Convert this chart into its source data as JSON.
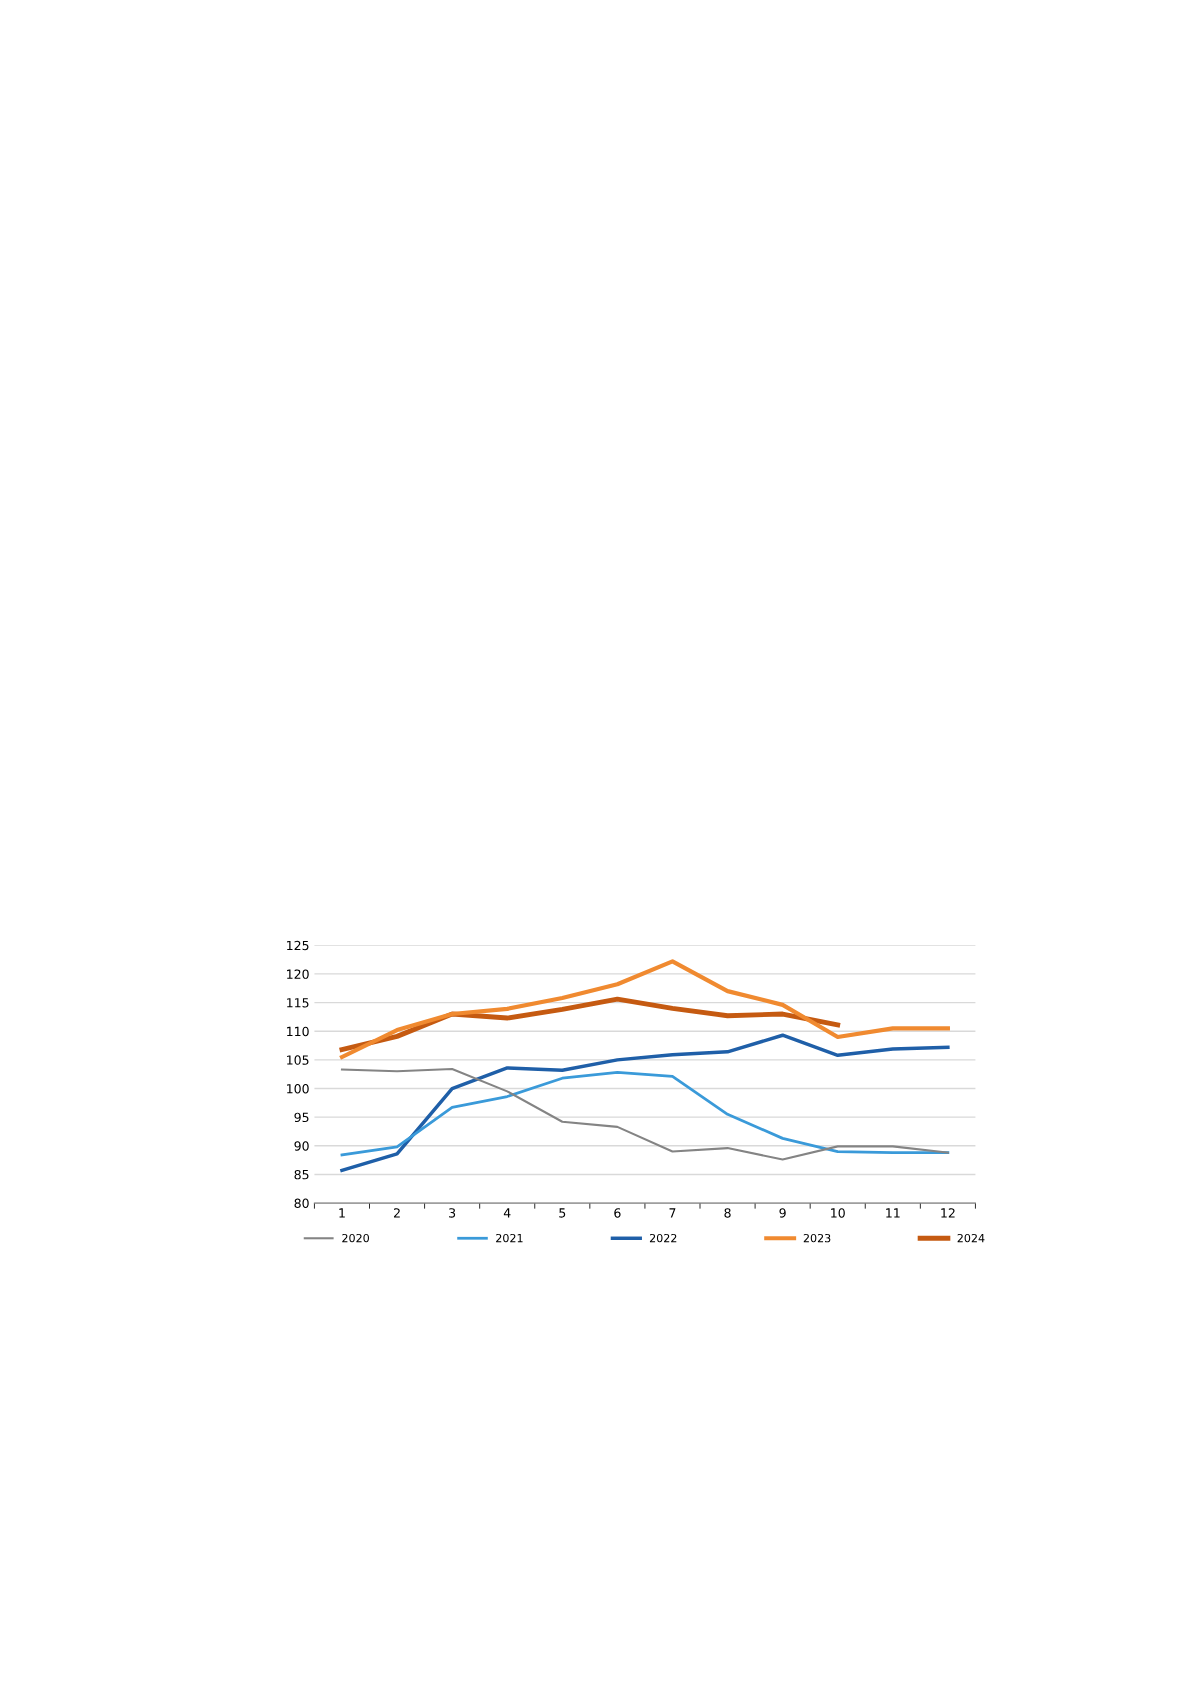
{
  "chart_data": {
    "type": "line",
    "categories": [
      "1",
      "2",
      "3",
      "4",
      "5",
      "6",
      "7",
      "8",
      "9",
      "10",
      "11",
      "12"
    ],
    "series": [
      {
        "name": "2020",
        "color": "#848484",
        "values": [
          103.3,
          103.0,
          103.4,
          99.5,
          94.2,
          93.3,
          89.0,
          89.6,
          87.6,
          89.9,
          89.9,
          88.8
        ]
      },
      {
        "name": "2021",
        "color": "#3a9ad9",
        "values": [
          88.4,
          89.8,
          96.7,
          98.6,
          101.8,
          102.8,
          102.1,
          95.5,
          91.3,
          89.0,
          88.8,
          88.8
        ]
      },
      {
        "name": "2022",
        "color": "#1f5fa8",
        "values": [
          85.7,
          88.6,
          100.0,
          103.6,
          103.2,
          105.0,
          105.9,
          106.4,
          109.3,
          105.8,
          106.9,
          107.2
        ]
      },
      {
        "name": "2023",
        "color": "#f08a30",
        "values": [
          105.5,
          110.2,
          113.0,
          113.9,
          115.8,
          118.2,
          122.2,
          117.0,
          114.6,
          109.0,
          110.5,
          110.5
        ]
      },
      {
        "name": "2024",
        "color": "#c55a11",
        "values": [
          106.8,
          109.1,
          113.0,
          112.3,
          113.8,
          115.6,
          114.0,
          112.7,
          113.0,
          111.1,
          null,
          null
        ]
      }
    ],
    "ylim": [
      80,
      125
    ],
    "yticks": [
      80,
      85,
      90,
      95,
      100,
      105,
      110,
      115,
      120,
      125
    ],
    "grid": "y",
    "legend": "bottom",
    "marker": "none",
    "line_style": "solid"
  }
}
